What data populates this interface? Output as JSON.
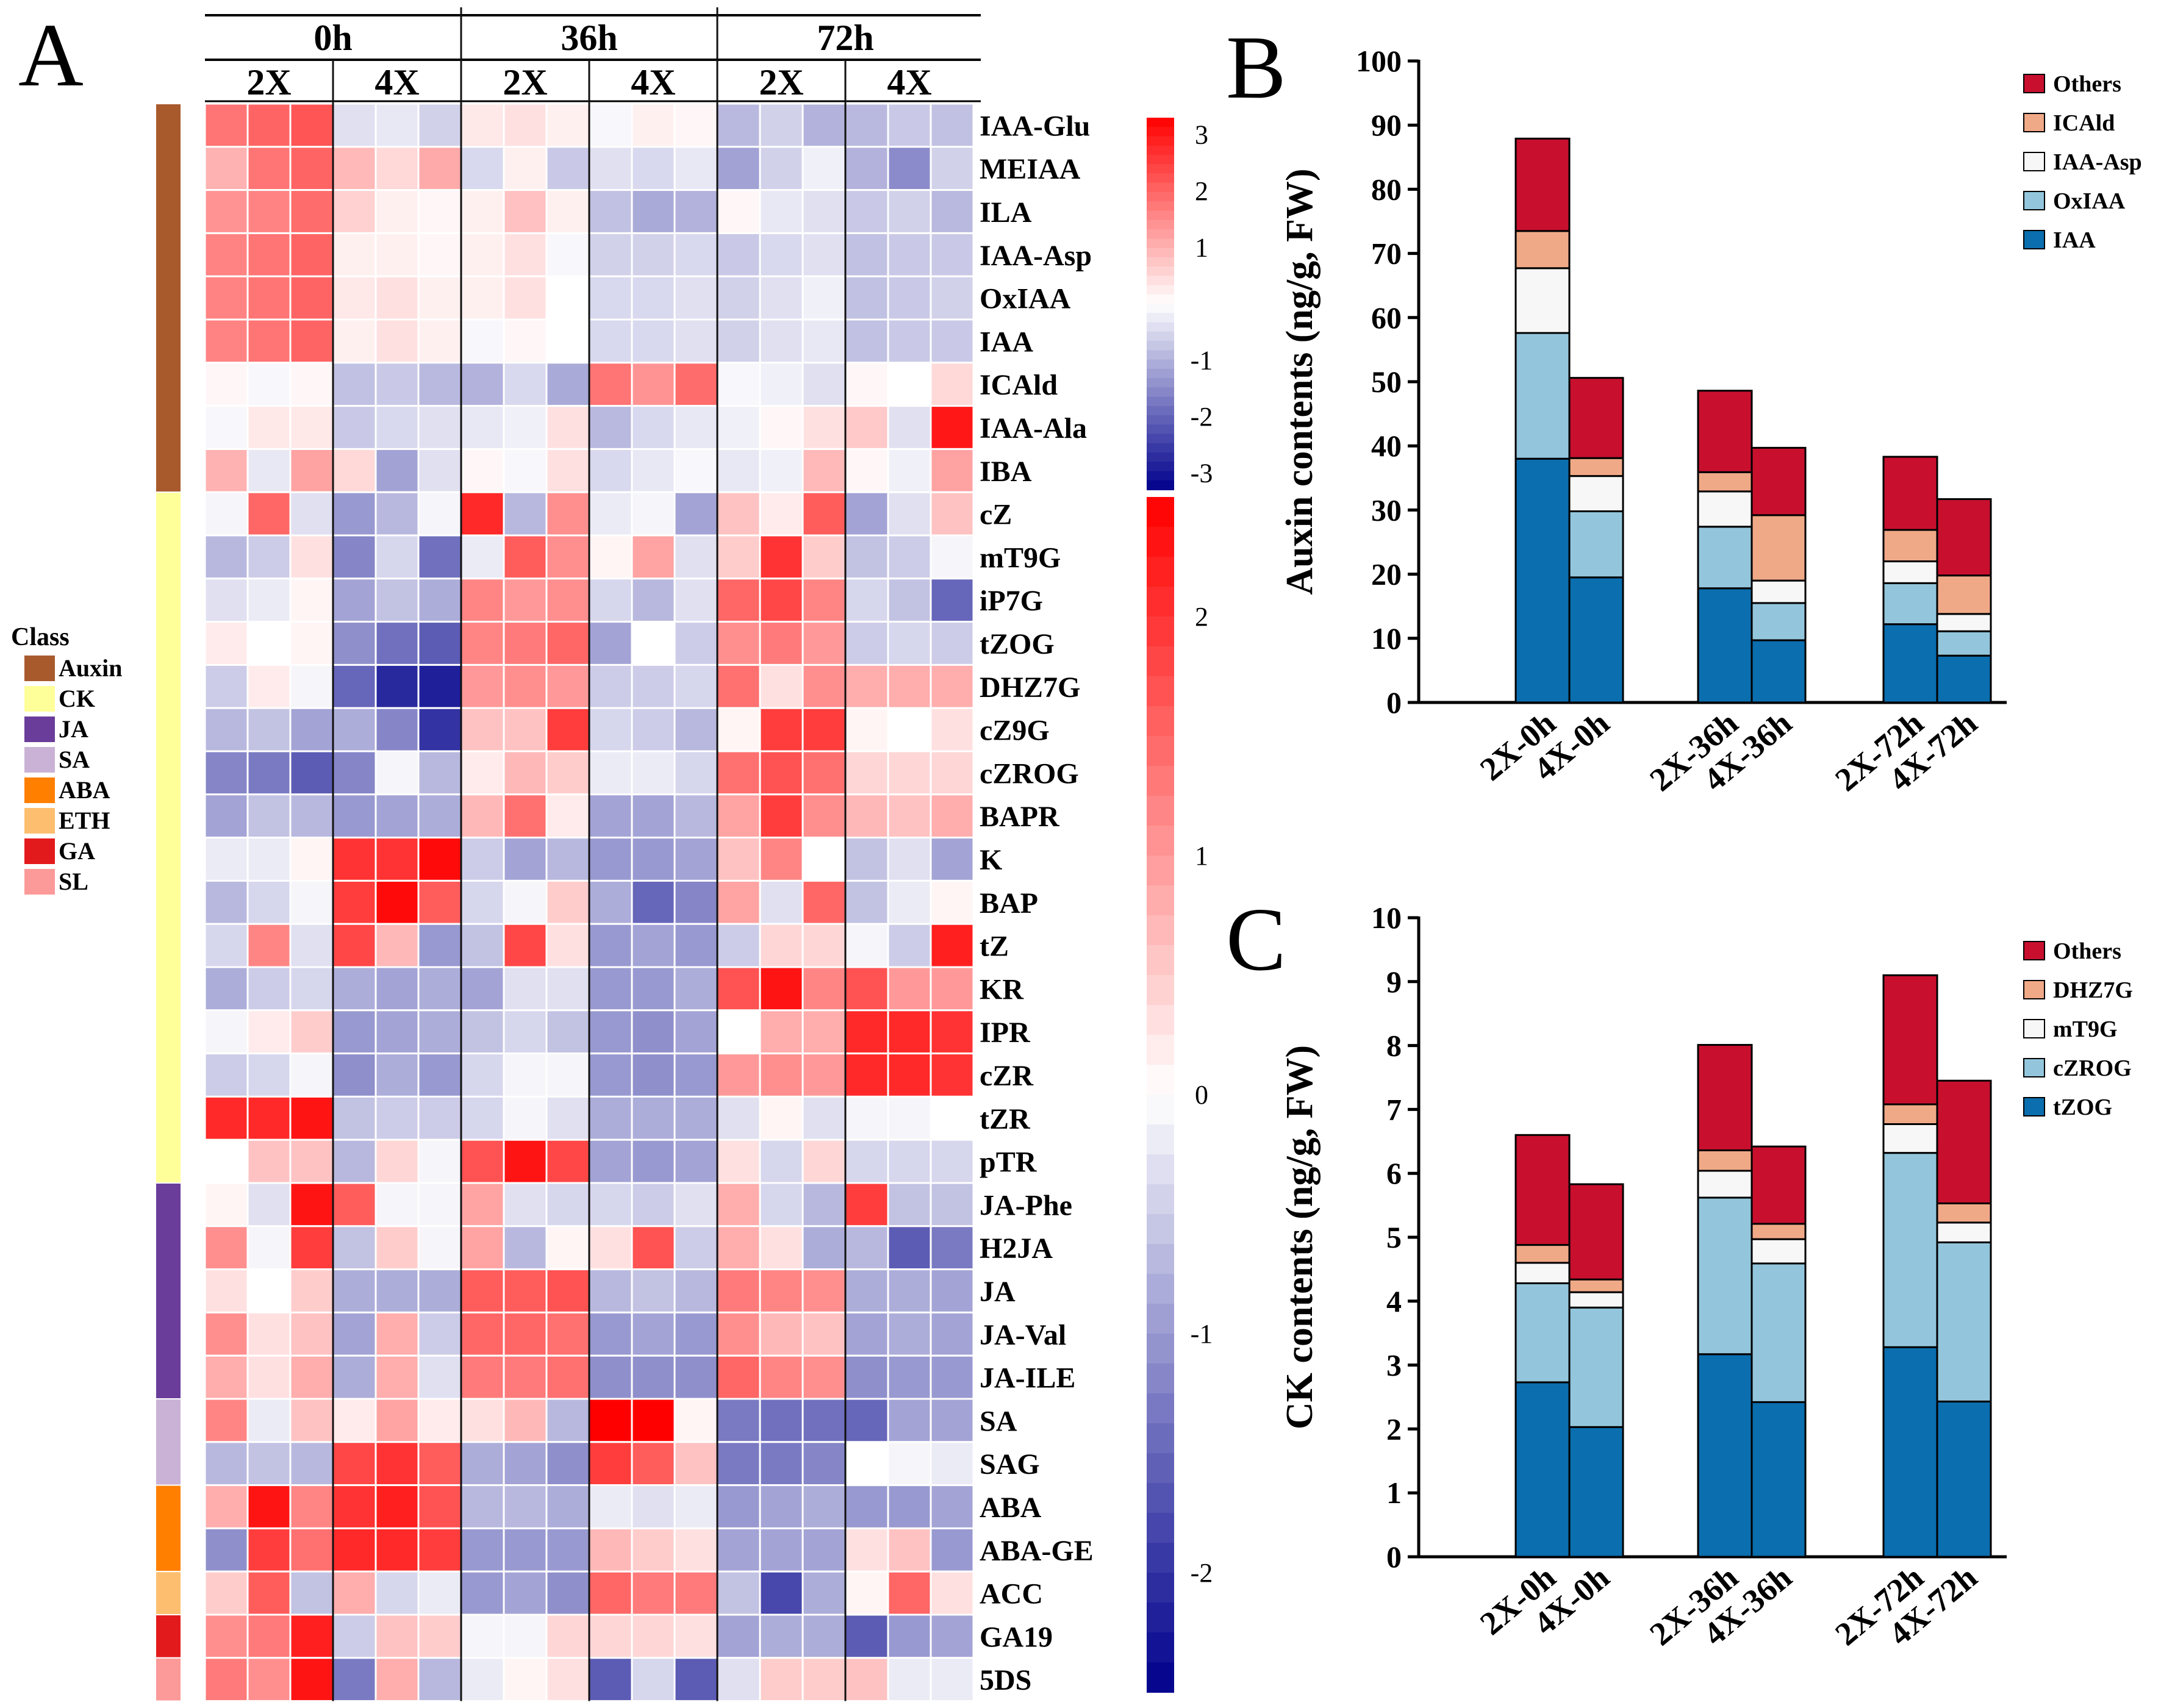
{
  "panels": {
    "a": "A",
    "b": "B",
    "c": "C"
  },
  "heatmap": {
    "time_groups": [
      "0h",
      "36h",
      "72h"
    ],
    "ploidy_groups": [
      "2X",
      "4X",
      "2X",
      "4X",
      "2X",
      "4X"
    ],
    "rows": [
      "IAA-Glu",
      "MEIAA",
      "ILA",
      "IAA-Asp",
      "OxIAA",
      "IAA",
      "ICAld",
      "IAA-Ala",
      "IBA",
      "cZ",
      "mT9G",
      "iP7G",
      "tZOG",
      "DHZ7G",
      "cZ9G",
      "cZROG",
      "BAPR",
      "K",
      "BAP",
      "tZ",
      "KR",
      "IPR",
      "cZR",
      "tZR",
      "pTR",
      "JA-Phe",
      "H2JA",
      "JA",
      "JA-Val",
      "JA-ILE",
      "SA",
      "SAG",
      "ABA",
      "ABA-GE",
      "ACC",
      "GA19",
      "5DS"
    ],
    "row_classes": [
      "Auxin",
      "Auxin",
      "Auxin",
      "Auxin",
      "Auxin",
      "Auxin",
      "Auxin",
      "Auxin",
      "Auxin",
      "CK",
      "CK",
      "CK",
      "CK",
      "CK",
      "CK",
      "CK",
      "CK",
      "CK",
      "CK",
      "CK",
      "CK",
      "CK",
      "CK",
      "CK",
      "CK",
      "JA",
      "JA",
      "JA",
      "JA",
      "JA",
      "SA",
      "SA",
      "ABA",
      "ABA",
      "ETH",
      "GA",
      "SL"
    ],
    "values": [
      [
        1.8,
        2.0,
        2.2,
        -0.4,
        -0.3,
        -0.6,
        0.3,
        0.4,
        0.2,
        -0.1,
        0.2,
        0.1,
        -0.9,
        -0.6,
        -1.0,
        -0.9,
        -0.7,
        -0.8
      ],
      [
        1.0,
        1.8,
        2.0,
        0.9,
        0.5,
        1.1,
        -0.5,
        0.2,
        -0.7,
        -0.4,
        -0.5,
        -0.3,
        -1.2,
        -0.6,
        -0.2,
        -1.0,
        -1.5,
        -0.6
      ],
      [
        1.4,
        1.6,
        1.9,
        0.6,
        0.2,
        0.1,
        0.2,
        0.8,
        0.2,
        -0.8,
        -1.1,
        -1.0,
        0.1,
        -0.3,
        -0.4,
        -0.7,
        -0.6,
        -0.9
      ],
      [
        1.6,
        1.8,
        2.0,
        0.2,
        0.2,
        0.1,
        0.2,
        0.4,
        -0.1,
        -0.6,
        -0.6,
        -0.5,
        -0.7,
        -0.5,
        -0.4,
        -0.8,
        -0.7,
        -0.7
      ],
      [
        1.6,
        1.8,
        2.0,
        0.3,
        0.4,
        0.2,
        0.2,
        0.4,
        0.0,
        -0.5,
        -0.5,
        -0.4,
        -0.6,
        -0.4,
        -0.2,
        -0.8,
        -0.7,
        -0.6
      ],
      [
        1.6,
        1.8,
        2.0,
        0.2,
        0.4,
        0.2,
        -0.1,
        0.1,
        0.0,
        -0.5,
        -0.5,
        -0.4,
        -0.6,
        -0.4,
        -0.3,
        -0.8,
        -0.7,
        -0.7
      ],
      [
        0.1,
        -0.1,
        0.1,
        -0.8,
        -0.7,
        -0.9,
        -1.0,
        -0.5,
        -1.1,
        1.8,
        1.4,
        1.9,
        -0.1,
        -0.2,
        -0.4,
        0.1,
        0.0,
        0.5
      ],
      [
        -0.1,
        0.3,
        0.3,
        -0.7,
        -0.5,
        -0.4,
        -0.3,
        -0.2,
        0.4,
        -0.9,
        -0.5,
        -0.3,
        -0.2,
        0.1,
        0.4,
        0.7,
        -0.4,
        3.0
      ],
      [
        1.0,
        -0.3,
        1.2,
        0.5,
        -1.2,
        -0.4,
        0.1,
        -0.1,
        0.4,
        -0.5,
        -0.3,
        -0.1,
        -0.3,
        -0.2,
        0.9,
        0.1,
        -0.2,
        1.2
      ],
      [
        -0.1,
        1.5,
        -0.3,
        -1.0,
        -0.7,
        -0.1,
        2.1,
        -0.7,
        1.1,
        -0.2,
        -0.1,
        -0.9,
        0.6,
        0.2,
        1.6,
        -0.9,
        -0.3,
        0.6
      ],
      [
        -0.7,
        -0.5,
        0.3,
        -1.2,
        -0.4,
        -1.4,
        -0.2,
        1.6,
        1.1,
        0.1,
        0.9,
        -0.3,
        0.5,
        2.0,
        0.5,
        -0.6,
        -0.5,
        -0.1
      ],
      [
        -0.3,
        -0.2,
        0.1,
        -0.9,
        -0.6,
        -0.8,
        1.2,
        1.0,
        1.1,
        -0.4,
        -0.7,
        -0.3,
        1.5,
        1.8,
        1.2,
        -0.4,
        -0.6,
        -1.5
      ],
      [
        0.2,
        0.0,
        0.1,
        -1.1,
        -1.4,
        -1.6,
        1.2,
        1.3,
        1.5,
        -0.9,
        0.0,
        -0.5,
        1.1,
        1.3,
        1.0,
        -0.5,
        -0.4,
        -0.5
      ],
      [
        -0.5,
        0.2,
        -0.1,
        -1.5,
        -2.1,
        -2.2,
        1.0,
        1.1,
        1.0,
        -0.5,
        -0.5,
        -0.4,
        1.4,
        0.3,
        1.1,
        0.8,
        0.8,
        0.8
      ],
      [
        -0.7,
        -0.6,
        -0.9,
        -0.8,
        -1.2,
        -2.0,
        0.6,
        0.6,
        1.9,
        -0.4,
        -0.5,
        -0.7,
        0.1,
        1.9,
        1.9,
        0.1,
        0.0,
        0.3
      ],
      [
        -1.2,
        -1.3,
        -1.6,
        -1.2,
        -0.1,
        -0.7,
        0.2,
        0.7,
        0.5,
        -0.2,
        -0.2,
        -0.4,
        1.4,
        1.7,
        1.4,
        0.4,
        0.4,
        0.4
      ],
      [
        -0.9,
        -0.6,
        -0.7,
        -1.0,
        -0.9,
        -0.8,
        0.7,
        1.4,
        0.2,
        -0.9,
        -0.9,
        -0.7,
        0.9,
        1.9,
        1.1,
        0.7,
        0.6,
        0.8
      ],
      [
        -0.2,
        -0.2,
        0.1,
        2.0,
        2.0,
        2.4,
        -0.5,
        -0.9,
        -0.7,
        -1.0,
        -1.0,
        -0.9,
        0.6,
        1.2,
        0.0,
        -0.6,
        -0.3,
        -0.9
      ],
      [
        -0.7,
        -0.4,
        -0.1,
        1.9,
        2.4,
        1.6,
        -0.4,
        -0.1,
        0.5,
        -0.8,
        -1.5,
        -1.2,
        0.9,
        -0.3,
        1.5,
        -0.6,
        -0.2,
        0.1
      ],
      [
        -0.4,
        1.2,
        -0.3,
        1.8,
        0.7,
        -1.0,
        -0.6,
        1.8,
        0.3,
        -1.0,
        -0.9,
        -1.0,
        -0.5,
        0.4,
        0.4,
        -0.1,
        -0.5,
        2.2
      ],
      [
        -0.8,
        -0.5,
        -0.4,
        -0.8,
        -0.9,
        -0.8,
        -0.9,
        -0.3,
        -0.3,
        -1.0,
        -1.0,
        -0.8,
        1.7,
        2.3,
        1.2,
        1.7,
        1.0,
        1.0
      ],
      [
        -0.1,
        0.2,
        0.5,
        -1.0,
        -0.9,
        -0.8,
        -0.6,
        -0.4,
        -0.6,
        -1.0,
        -1.1,
        -0.9,
        0.0,
        0.8,
        0.8,
        2.1,
        2.1,
        2.0
      ],
      [
        -0.5,
        -0.4,
        -0.1,
        -1.1,
        -0.8,
        -1.0,
        -0.4,
        -0.1,
        -0.1,
        -1.0,
        -1.1,
        -1.0,
        1.0,
        1.1,
        1.0,
        2.1,
        2.1,
        2.0
      ],
      [
        2.1,
        2.1,
        2.3,
        -0.6,
        -0.5,
        -0.5,
        -0.4,
        -0.1,
        -0.3,
        -0.8,
        -0.8,
        -0.8,
        -0.3,
        0.1,
        -0.3,
        -0.1,
        -0.1,
        0.0
      ],
      [
        0.0,
        0.6,
        0.6,
        -0.7,
        0.4,
        -0.1,
        1.7,
        2.3,
        1.8,
        -0.9,
        -1.0,
        -0.9,
        0.3,
        -0.4,
        0.4,
        -0.4,
        -0.4,
        -0.4
      ],
      [
        0.1,
        -0.3,
        2.3,
        1.6,
        -0.1,
        -0.1,
        0.9,
        -0.3,
        -0.4,
        -0.4,
        -0.5,
        -0.3,
        0.8,
        -0.4,
        -0.7,
        1.9,
        -0.6,
        -0.6
      ],
      [
        1.1,
        -0.1,
        1.9,
        -0.6,
        0.5,
        -0.1,
        0.9,
        -0.7,
        0.1,
        0.3,
        1.7,
        -0.5,
        0.8,
        0.3,
        -0.8,
        -0.7,
        -1.6,
        -1.3
      ],
      [
        0.3,
        0.0,
        0.5,
        -0.8,
        -0.8,
        -0.8,
        1.6,
        1.6,
        1.7,
        -0.7,
        -0.6,
        -0.7,
        1.3,
        1.2,
        1.1,
        -0.8,
        -0.8,
        -0.9
      ],
      [
        1.1,
        0.3,
        0.6,
        -0.9,
        0.8,
        -0.5,
        1.5,
        1.5,
        1.4,
        -1.0,
        -0.9,
        -1.0,
        1.1,
        0.7,
        0.6,
        -0.9,
        -0.8,
        -0.9
      ],
      [
        0.8,
        0.3,
        0.8,
        -0.8,
        0.8,
        -0.3,
        1.3,
        1.3,
        1.4,
        -1.1,
        -1.1,
        -1.1,
        1.5,
        1.2,
        1.1,
        -1.1,
        -1.0,
        -1.0
      ],
      [
        1.2,
        -0.2,
        0.6,
        0.2,
        0.9,
        0.2,
        0.3,
        0.7,
        -0.7,
        2.6,
        2.5,
        0.1,
        -1.3,
        -1.4,
        -1.4,
        -1.5,
        -0.9,
        -0.9
      ],
      [
        -0.7,
        -0.6,
        -0.7,
        1.8,
        2.0,
        1.6,
        -0.8,
        -0.9,
        -1.1,
        1.9,
        1.6,
        0.6,
        -1.3,
        -1.3,
        -1.2,
        0.0,
        -0.1,
        -0.2
      ],
      [
        0.8,
        2.3,
        1.2,
        2.0,
        2.2,
        1.7,
        -0.7,
        -0.7,
        -0.8,
        -0.2,
        -0.3,
        -0.2,
        -1.0,
        -0.9,
        -0.8,
        -1.0,
        -1.0,
        -0.9
      ],
      [
        -1.1,
        1.9,
        1.4,
        2.1,
        2.1,
        1.9,
        -1.0,
        -1.0,
        -1.0,
        0.7,
        0.5,
        0.3,
        -0.9,
        -0.9,
        -0.9,
        0.3,
        0.6,
        -1.0
      ],
      [
        0.5,
        1.6,
        -0.6,
        0.8,
        -0.4,
        -0.2,
        -1.0,
        -0.9,
        -1.1,
        1.5,
        1.3,
        1.3,
        -0.6,
        -1.8,
        -0.8,
        0.1,
        1.5,
        0.3
      ],
      [
        1.1,
        1.3,
        2.2,
        -0.5,
        0.6,
        0.5,
        -0.1,
        -0.1,
        0.4,
        0.4,
        0.4,
        0.3,
        -0.9,
        -0.8,
        -0.8,
        -1.6,
        -1.0,
        -0.9
      ],
      [
        1.3,
        1.1,
        2.3,
        -1.3,
        0.8,
        -0.7,
        -0.2,
        0.1,
        0.3,
        -1.6,
        -0.4,
        -1.6,
        -0.3,
        0.5,
        0.5,
        0.6,
        -0.2,
        -0.2
      ]
    ]
  },
  "colorbar_auxin": {
    "ticks": [
      "3",
      "2",
      "1",
      "-1",
      "-2",
      "-3"
    ],
    "vmin": -3.3,
    "vmax": 3.3
  },
  "colorbar_main": {
    "ticks": [
      "2",
      "1",
      "0",
      "-1",
      "-2"
    ],
    "vmin": -2.5,
    "vmax": 2.5
  },
  "class_legend": {
    "title": "Class",
    "items": [
      {
        "label": "Auxin",
        "color": "#a95a2d"
      },
      {
        "label": "CK",
        "color": "#ffff99"
      },
      {
        "label": "JA",
        "color": "#6a3d9a"
      },
      {
        "label": "SA",
        "color": "#cab2d6"
      },
      {
        "label": "ABA",
        "color": "#ff7f00"
      },
      {
        "label": "ETH",
        "color": "#fdbf6f"
      },
      {
        "label": "GA",
        "color": "#e31a1c"
      },
      {
        "label": "SL",
        "color": "#fb9a99"
      }
    ]
  },
  "chart_data": [
    {
      "type": "bar",
      "stacked": true,
      "panel": "B",
      "ylabel": "Auxin contents (ng/g, FW)",
      "ylim": [
        0,
        100
      ],
      "yticks": [
        "0",
        "10",
        "20",
        "30",
        "40",
        "50",
        "60",
        "70",
        "80",
        "90",
        "100"
      ],
      "categories": [
        "2X-0h",
        "4X-0h",
        "2X-36h",
        "4X-36h",
        "2X-72h",
        "4X-72h"
      ],
      "series": [
        {
          "name": "IAA",
          "color": "#0b6eae",
          "values": [
            38.0,
            19.5,
            17.8,
            9.7,
            12.2,
            7.3
          ]
        },
        {
          "name": "OxIAA",
          "color": "#93c6dc",
          "values": [
            19.6,
            10.3,
            9.6,
            5.8,
            6.4,
            3.8
          ]
        },
        {
          "name": "IAA-Asp",
          "color": "#f7f7f7",
          "values": [
            10.1,
            5.5,
            5.5,
            3.5,
            3.4,
            2.7
          ]
        },
        {
          "name": "ICAld",
          "color": "#f0a987",
          "values": [
            5.8,
            2.8,
            3.0,
            10.2,
            4.9,
            6.0
          ]
        },
        {
          "name": "Others",
          "color": "#c8102e",
          "values": [
            14.4,
            12.5,
            12.7,
            10.5,
            11.4,
            11.9
          ]
        }
      ],
      "legend_order": [
        "Others",
        "ICAld",
        "IAA-Asp",
        "OxIAA",
        "IAA"
      ]
    },
    {
      "type": "bar",
      "stacked": true,
      "panel": "C",
      "ylabel": "CK contents (ng/g, FW)",
      "ylim": [
        0,
        10
      ],
      "yticks": [
        "0",
        "1",
        "2",
        "3",
        "4",
        "5",
        "6",
        "7",
        "8",
        "9",
        "10"
      ],
      "categories": [
        "2X-0h",
        "4X-0h",
        "2X-36h",
        "4X-36h",
        "2X-72h",
        "4X-72h"
      ],
      "series": [
        {
          "name": "tZOG",
          "color": "#0b6eae",
          "values": [
            2.73,
            2.03,
            3.17,
            2.42,
            3.28,
            2.43
          ]
        },
        {
          "name": "cZROG",
          "color": "#93c6dc",
          "values": [
            1.55,
            1.87,
            2.45,
            2.17,
            3.04,
            2.49
          ]
        },
        {
          "name": "mT9G",
          "color": "#f7f7f7",
          "values": [
            0.32,
            0.24,
            0.42,
            0.38,
            0.45,
            0.31
          ]
        },
        {
          "name": "DHZ7G",
          "color": "#f0a987",
          "values": [
            0.28,
            0.2,
            0.32,
            0.24,
            0.31,
            0.3
          ]
        },
        {
          "name": "Others",
          "color": "#c8102e",
          "values": [
            1.72,
            1.49,
            1.65,
            1.21,
            2.02,
            1.92
          ]
        }
      ],
      "legend_order": [
        "Others",
        "DHZ7G",
        "mT9G",
        "cZROG",
        "tZOG"
      ]
    }
  ]
}
